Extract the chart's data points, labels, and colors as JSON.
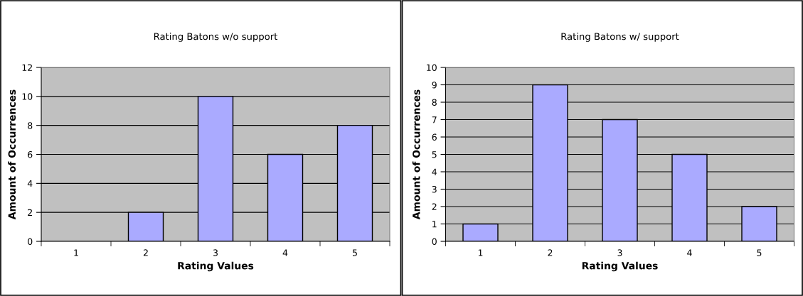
{
  "chart_data": [
    {
      "type": "bar",
      "title": "Rating Batons w/o support",
      "xlabel": "Rating Values",
      "ylabel": "Amount of Occurrences",
      "categories": [
        "1",
        "2",
        "3",
        "4",
        "5"
      ],
      "values": [
        0,
        2,
        10,
        6,
        8
      ],
      "color": "#aaaaff",
      "ylim": [
        0,
        12
      ],
      "yticks": [
        0,
        2,
        4,
        6,
        8,
        10,
        12
      ],
      "grid": "y",
      "legend": false
    },
    {
      "type": "bar",
      "title": "Rating Batons w/ support",
      "xlabel": "Rating Values",
      "ylabel": "Amount of Occurrences",
      "categories": [
        "1",
        "2",
        "3",
        "4",
        "5"
      ],
      "values": [
        1,
        9,
        7,
        5,
        2
      ],
      "color": "#aaaaff",
      "ylim": [
        0,
        10
      ],
      "yticks": [
        0,
        1,
        2,
        3,
        4,
        5,
        6,
        7,
        8,
        9,
        10
      ],
      "grid": "y",
      "legend": false
    }
  ]
}
